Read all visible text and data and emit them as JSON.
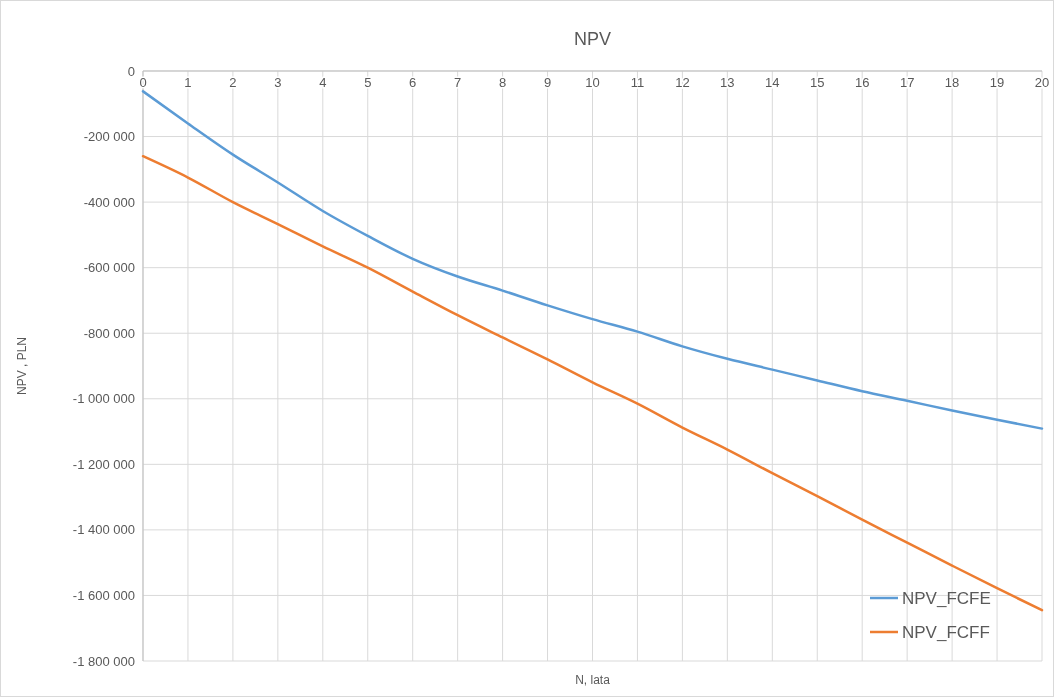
{
  "chart_data": {
    "type": "line",
    "title": "NPV",
    "xlabel": "N, lata",
    "ylabel": "NPV , PLN",
    "x": [
      0,
      1,
      2,
      3,
      4,
      5,
      6,
      7,
      8,
      9,
      10,
      11,
      12,
      13,
      14,
      15,
      16,
      17,
      18,
      19,
      20
    ],
    "series": [
      {
        "name": "NPV_FCFE",
        "color": "#5b9bd5",
        "values": [
          -62000,
          -160000,
          -255000,
          -340000,
          -427000,
          -503000,
          -573000,
          -627000,
          -670000,
          -715000,
          -757000,
          -795000,
          -840000,
          -878000,
          -911000,
          -944000,
          -977000,
          -1006000,
          -1036000,
          -1064000,
          -1091000
        ]
      },
      {
        "name": "NPV_FCFF",
        "color": "#ed7d31",
        "values": [
          -260000,
          -325000,
          -400000,
          -467000,
          -535000,
          -600000,
          -673000,
          -745000,
          -813000,
          -880000,
          -950000,
          -1015000,
          -1088000,
          -1155000,
          -1227000,
          -1297000,
          -1369000,
          -1439000,
          -1509000,
          -1578000,
          -1645000
        ]
      }
    ],
    "xlim": [
      0,
      20
    ],
    "xticks": [
      0,
      1,
      2,
      3,
      4,
      5,
      6,
      7,
      8,
      9,
      10,
      11,
      12,
      13,
      14,
      15,
      16,
      17,
      18,
      19,
      20
    ],
    "ylim": [
      -1800000,
      0
    ],
    "yticks": [
      0,
      {
        "value": -200000,
        "label": "-200 000"
      },
      {
        "value": -400000,
        "label": "-400 000"
      },
      {
        "value": -600000,
        "label": "-600 000"
      },
      {
        "value": -800000,
        "label": "-800 000"
      },
      {
        "value": -1000000,
        "label": "-1 000 000"
      },
      {
        "value": -1200000,
        "label": "-1 200 000"
      },
      {
        "value": -1400000,
        "label": "-1 400 000"
      },
      {
        "value": -1600000,
        "label": "-1 600 000"
      },
      {
        "value": -1800000,
        "label": "-1 800 000"
      }
    ],
    "grid": true,
    "legend": "bottom right",
    "marker": "none",
    "line_style": "solid"
  }
}
